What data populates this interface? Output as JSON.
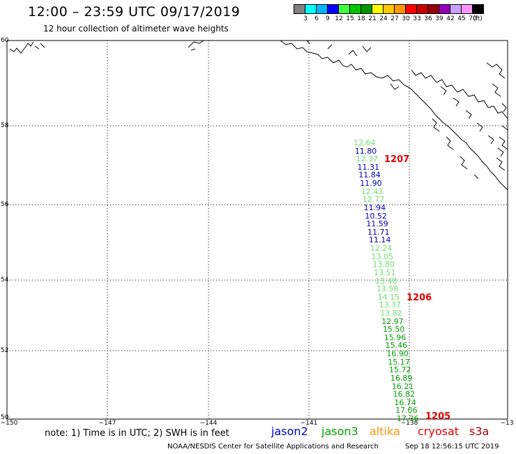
{
  "title": "12:00 – 23:59 UTC 09/17/2019",
  "subtitle": "12 hour collection of altimeter wave heights",
  "legend": {
    "colors": [
      "#808080",
      "#00ffff",
      "#00b4ff",
      "#0000ff",
      "#40ff40",
      "#00c800",
      "#009600",
      "#ffff00",
      "#ffc800",
      "#ff9600",
      "#ff0000",
      "#c80000",
      "#960000",
      "#9600b4",
      "#c8a0ff",
      "#ff96ff",
      "#000000"
    ],
    "labels": [
      "3",
      "6",
      "9",
      "12",
      "15",
      "18",
      "21",
      "24",
      "27",
      "30",
      "33",
      "36",
      "39",
      "42",
      "45",
      "70",
      "(ft)"
    ]
  },
  "axes": {
    "y_labels": [
      "60",
      "58",
      "56",
      "54",
      "52",
      "50"
    ],
    "x_labels": [
      "−150",
      "−147",
      "−144",
      "−141",
      "−138",
      "−13"
    ]
  },
  "note": "note: 1) Time is in UTC; 2) SWH is in feet",
  "satellites": [
    {
      "name": "jason2",
      "color": "#0000d0"
    },
    {
      "name": "jason3",
      "color": "#00a000"
    },
    {
      "name": "altika",
      "color": "#ff9600"
    },
    {
      "name": "cryosat",
      "color": "#e00000"
    },
    {
      "name": "s3a",
      "color": "#a00000"
    }
  ],
  "credit": "NOAA/NESDIS Center for Satellite Applications and Research",
  "timestamp": "Sep 18 12:56:15 UTC 2019",
  "track": {
    "satellite_order": [
      "altika",
      "jason2",
      "altika",
      "jason2",
      "jason2",
      "jason2",
      "altika",
      "altika",
      "jason2",
      "jason2",
      "jason2",
      "jason2",
      "jason2",
      "altika",
      "altika",
      "altika",
      "altika",
      "altika",
      "altika",
      "altika",
      "altika",
      "altika",
      "jason3",
      "jason3",
      "jason3",
      "jason3",
      "jason3",
      "jason3",
      "jason3",
      "jason3",
      "jason3",
      "jason3",
      "jason3",
      "jason3",
      "jason3"
    ],
    "values": [
      "12.64",
      "11.80",
      "12.37",
      "11.31",
      "11.84",
      "11.90",
      "12.43",
      "12.77",
      "11.94",
      "10.52",
      "11.59",
      "11.71",
      "11.14",
      "12.24",
      "13.05",
      "13.80",
      "13.51",
      "13.48",
      "13.58",
      "14.15",
      "13.37",
      "13.82",
      "12.97",
      "15.50",
      "15.96",
      "15.46",
      "16.90",
      "15.17",
      "15.72",
      "16.89",
      "16.21",
      "16.82",
      "16.74",
      "17.06",
      "17.36"
    ],
    "value_colors": {
      "altika": "#6ee06e",
      "jason2": "#0000b4",
      "jason3": "#00a000"
    }
  },
  "pass_times": [
    "1207",
    "1206",
    "1205"
  ]
}
